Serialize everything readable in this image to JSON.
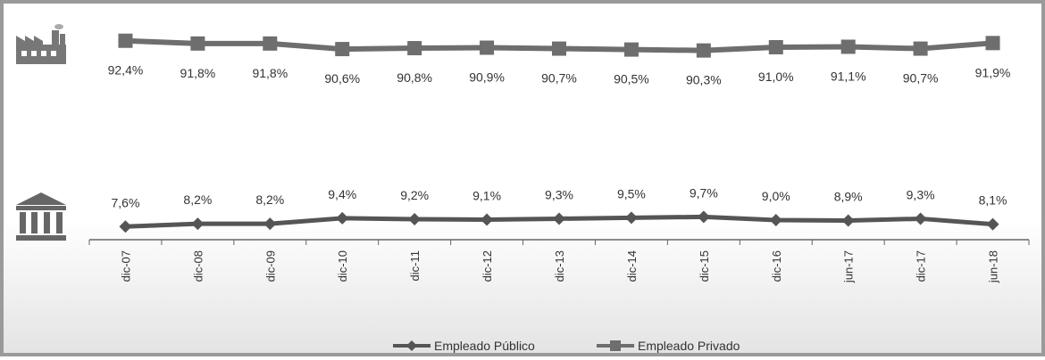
{
  "chart_data": {
    "type": "line",
    "categories": [
      "dic-07",
      "dic-08",
      "dic-09",
      "dic-10",
      "dic-11",
      "dic-12",
      "dic-13",
      "dic-14",
      "dic-15",
      "dic-16",
      "jun-17",
      "dic-17",
      "jun-18"
    ],
    "series": [
      {
        "name": "Empleado Privado",
        "marker": "square",
        "values": [
          92.4,
          91.8,
          91.8,
          90.6,
          90.8,
          90.9,
          90.7,
          90.5,
          90.3,
          91.0,
          91.1,
          90.7,
          91.9
        ],
        "labels": [
          "92,4%",
          "91,8%",
          "91,8%",
          "90,6%",
          "90,8%",
          "90,9%",
          "90,7%",
          "90,5%",
          "90,3%",
          "91,0%",
          "91,1%",
          "90,7%",
          "91,9%"
        ],
        "icon": "factory-icon",
        "color": "#6e6e6e"
      },
      {
        "name": "Empleado Público",
        "marker": "diamond",
        "values": [
          7.6,
          8.2,
          8.2,
          9.4,
          9.2,
          9.1,
          9.3,
          9.5,
          9.7,
          9.0,
          8.9,
          9.3,
          8.1
        ],
        "labels": [
          "7,6%",
          "8,2%",
          "8,2%",
          "9,4%",
          "9,2%",
          "9,1%",
          "9,3%",
          "9,5%",
          "9,7%",
          "9,0%",
          "8,9%",
          "9,3%",
          "8,1%"
        ],
        "icon": "government-building-icon",
        "color": "#555555"
      }
    ],
    "legend": {
      "position": "bottom",
      "entries": [
        "Empleado Público",
        "Empleado Privado"
      ]
    },
    "grid": false,
    "axis": {
      "y_visible": false,
      "x_tick_rotation": "vertical"
    }
  }
}
